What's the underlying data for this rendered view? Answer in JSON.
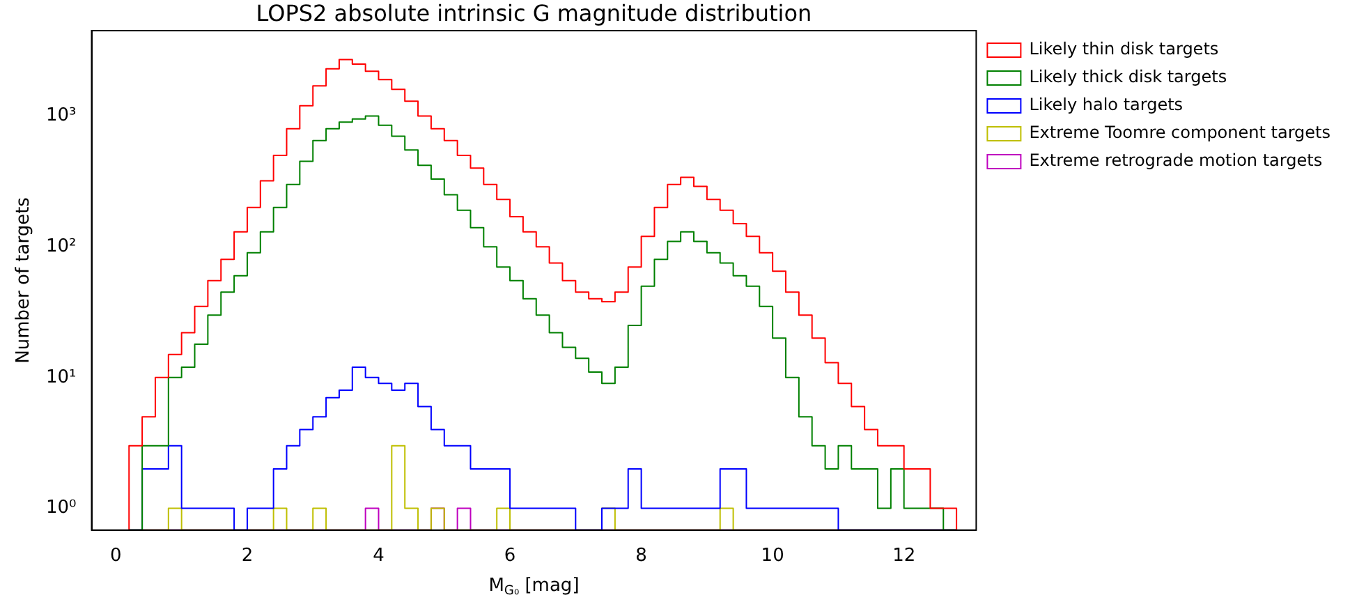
{
  "chart_data": {
    "type": "histogram",
    "title": "LOPS2 absolute intrinsic G magnitude distribution",
    "xlabel": "M$_{G₀}$ [mag]",
    "ylabel": "Number of targets",
    "bins": [
      0.2,
      0.4,
      0.6,
      0.8,
      1.0,
      1.2,
      1.4,
      1.6,
      1.8,
      2.0,
      2.2,
      2.4,
      2.6,
      2.8,
      3.0,
      3.2,
      3.4,
      3.6,
      3.8,
      4.0,
      4.2,
      4.4,
      4.6,
      4.8,
      5.0,
      5.2,
      5.4,
      5.6,
      5.8,
      6.0,
      6.2,
      6.4,
      6.6,
      6.8,
      7.0,
      7.2,
      7.4,
      7.6,
      7.8,
      8.0,
      8.2,
      8.4,
      8.6,
      8.8,
      9.0,
      9.2,
      9.4,
      9.6,
      9.8,
      10.0,
      10.2,
      10.4,
      10.6,
      10.8,
      11.0,
      11.2,
      11.4,
      11.6,
      11.8,
      12.0,
      12.2,
      12.4,
      12.6,
      12.8
    ],
    "series": [
      {
        "name": "Likely thin disk targets",
        "color": "#ff0000",
        "values": [
          3,
          5,
          10,
          15,
          22,
          35,
          55,
          80,
          130,
          200,
          320,
          500,
          800,
          1200,
          1700,
          2300,
          2700,
          2500,
          2200,
          1900,
          1600,
          1300,
          1000,
          800,
          650,
          500,
          400,
          300,
          230,
          170,
          130,
          100,
          75,
          55,
          45,
          40,
          38,
          45,
          70,
          120,
          200,
          300,
          340,
          290,
          230,
          190,
          150,
          120,
          90,
          65,
          45,
          30,
          20,
          13,
          9,
          6,
          4,
          3,
          3,
          2,
          2,
          1,
          1
        ]
      },
      {
        "name": "Likely thick disk targets",
        "color": "#008000",
        "values": [
          null,
          3,
          3,
          10,
          12,
          18,
          30,
          45,
          60,
          90,
          130,
          200,
          300,
          450,
          650,
          800,
          900,
          950,
          1000,
          850,
          700,
          550,
          420,
          330,
          250,
          190,
          140,
          100,
          70,
          55,
          40,
          30,
          22,
          17,
          14,
          11,
          9,
          12,
          25,
          50,
          80,
          110,
          130,
          110,
          90,
          75,
          60,
          50,
          35,
          20,
          10,
          5,
          3,
          2,
          3,
          2,
          2,
          1,
          2,
          1,
          1,
          1,
          null
        ]
      },
      {
        "name": "Likely halo targets",
        "color": "#0000ff",
        "values": [
          null,
          2,
          2,
          3,
          1,
          1,
          1,
          1,
          null,
          1,
          1,
          2,
          3,
          4,
          5,
          7,
          8,
          12,
          10,
          9,
          8,
          9,
          6,
          4,
          3,
          3,
          2,
          2,
          2,
          1,
          1,
          1,
          1,
          1,
          null,
          null,
          1,
          1,
          2,
          1,
          1,
          1,
          1,
          1,
          1,
          2,
          2,
          1,
          1,
          1,
          1,
          1,
          1,
          1,
          null,
          null,
          null,
          null,
          null,
          null,
          null,
          null,
          null
        ]
      },
      {
        "name": "Extreme Toomre component targets",
        "color": "#bfbf00",
        "values": [
          null,
          null,
          null,
          1,
          null,
          null,
          null,
          null,
          null,
          null,
          null,
          1,
          null,
          null,
          1,
          null,
          null,
          null,
          null,
          null,
          3,
          1,
          null,
          1,
          null,
          null,
          null,
          null,
          1,
          null,
          null,
          null,
          null,
          null,
          null,
          null,
          1,
          null,
          null,
          null,
          null,
          null,
          null,
          null,
          null,
          1,
          null,
          null,
          null,
          null,
          null,
          null,
          null,
          null,
          null,
          null,
          null,
          null,
          null,
          null,
          null,
          null,
          null
        ]
      },
      {
        "name": "Extreme retrograde motion targets",
        "color": "#bf00bf",
        "values": [
          null,
          null,
          null,
          null,
          null,
          null,
          null,
          null,
          null,
          null,
          null,
          null,
          null,
          null,
          null,
          null,
          null,
          null,
          1,
          null,
          null,
          null,
          null,
          1,
          null,
          1,
          null,
          null,
          null,
          null,
          null,
          null,
          null,
          null,
          null,
          null,
          null,
          null,
          null,
          null,
          null,
          null,
          null,
          null,
          null,
          null,
          null,
          null,
          null,
          null,
          null,
          null,
          null,
          null,
          null,
          null,
          null,
          null,
          null,
          null,
          null,
          null,
          null
        ]
      }
    ],
    "log": "y",
    "xlim": [
      -0.37,
      13.1
    ],
    "ylim": [
      0.68,
      4500
    ],
    "xticks": [
      0,
      2,
      4,
      6,
      8,
      10,
      12
    ],
    "yticks": [
      {
        "value": 1,
        "label": "10⁰"
      },
      {
        "value": 10,
        "label": "10¹"
      },
      {
        "value": 100,
        "label": "10²"
      },
      {
        "value": 1000,
        "label": "10³"
      }
    ],
    "grid": false,
    "legend": "right"
  }
}
